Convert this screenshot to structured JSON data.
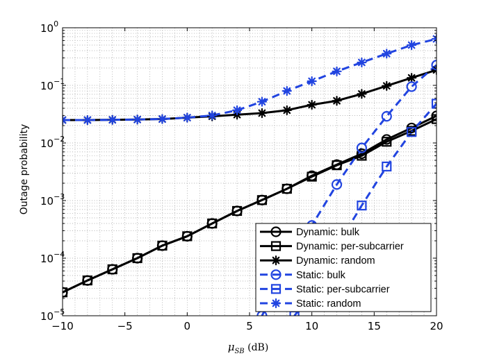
{
  "chart_data": {
    "type": "line",
    "xlabel_main": "μ",
    "xlabel_sub": "SB",
    "xlabel_unit": " (dB)",
    "ylabel": "Outage probability",
    "xlim": [
      -10,
      20
    ],
    "ylim": [
      1e-05,
      1
    ],
    "yscale": "log",
    "grid": true,
    "legend_position": "bottom-right",
    "x_ticks": [
      -10,
      -5,
      0,
      5,
      10,
      15,
      20
    ],
    "x_tick_labels": [
      "−10",
      "−5",
      "0",
      "5",
      "10",
      "15",
      "20"
    ],
    "y_ticks": [
      {
        "base": "10",
        "exp": "0",
        "value": 1
      },
      {
        "base": "10",
        "exp": "−1",
        "value": 0.1
      },
      {
        "base": "10",
        "exp": "−2",
        "value": 0.01
      },
      {
        "base": "10",
        "exp": "−3",
        "value": 0.001
      },
      {
        "base": "10",
        "exp": "−4",
        "value": 0.0001
      },
      {
        "base": "10",
        "exp": "−5",
        "value": 1e-05
      }
    ],
    "series": [
      {
        "name": "Dynamic: bulk",
        "color": "#000000",
        "dash": "solid",
        "marker": "circle",
        "x": [
          -10,
          -8,
          -6,
          -4,
          -2,
          0,
          2,
          4,
          6,
          8,
          10,
          12,
          14,
          16,
          18,
          20
        ],
        "y": [
          2.55e-05,
          4.1e-05,
          6.4e-05,
          0.0001,
          0.000165,
          0.00024,
          0.0004,
          0.00066,
          0.00102,
          0.0016,
          0.0027,
          0.0042,
          0.0065,
          0.0115,
          0.0182,
          0.0295
        ]
      },
      {
        "name": "Dynamic: per-subcarrier",
        "color": "#000000",
        "dash": "solid",
        "marker": "square",
        "x": [
          -10,
          -8,
          -6,
          -4,
          -2,
          0,
          2,
          4,
          6,
          8,
          10,
          12,
          14,
          16,
          18,
          20
        ],
        "y": [
          2.55e-05,
          4.1e-05,
          6.4e-05,
          0.0001,
          0.000165,
          0.00024,
          0.0004,
          0.00066,
          0.00102,
          0.0016,
          0.0026,
          0.0041,
          0.006,
          0.0105,
          0.0162,
          0.026
        ]
      },
      {
        "name": "Dynamic: random",
        "color": "#000000",
        "dash": "solid",
        "marker": "star",
        "x": [
          -10,
          -8,
          -6,
          -4,
          -2,
          0,
          2,
          4,
          6,
          8,
          10,
          12,
          14,
          16,
          18,
          20
        ],
        "y": [
          0.025,
          0.025,
          0.0252,
          0.0255,
          0.026,
          0.0275,
          0.029,
          0.031,
          0.033,
          0.037,
          0.046,
          0.054,
          0.071,
          0.098,
          0.135,
          0.185
        ]
      },
      {
        "name": "Static: bulk",
        "color": "#2144e0",
        "dash": "dashed",
        "marker": "circle",
        "x": [
          6,
          8,
          10,
          12,
          14,
          16,
          18,
          20
        ],
        "y": [
          1e-05,
          6.85e-05,
          0.00037,
          0.0019,
          0.0082,
          0.029,
          0.095,
          0.225
        ]
      },
      {
        "name": "Static: per-subcarrier",
        "color": "#2144e0",
        "dash": "dashed",
        "marker": "square",
        "x": [
          8.6,
          10,
          12,
          14,
          16,
          18,
          20
        ],
        "y": [
          1e-05,
          2.45e-05,
          0.00016,
          0.00082,
          0.0039,
          0.0155,
          0.048
        ]
      },
      {
        "name": "Static: random",
        "color": "#2144e0",
        "dash": "dashed",
        "marker": "star",
        "x": [
          -10,
          -8,
          -6,
          -4,
          -2,
          0,
          2,
          4,
          6,
          8,
          10,
          12,
          14,
          16,
          18,
          20
        ],
        "y": [
          0.025,
          0.025,
          0.0252,
          0.0255,
          0.026,
          0.0275,
          0.03,
          0.037,
          0.052,
          0.08,
          0.118,
          0.175,
          0.25,
          0.355,
          0.5,
          0.64
        ]
      }
    ]
  }
}
